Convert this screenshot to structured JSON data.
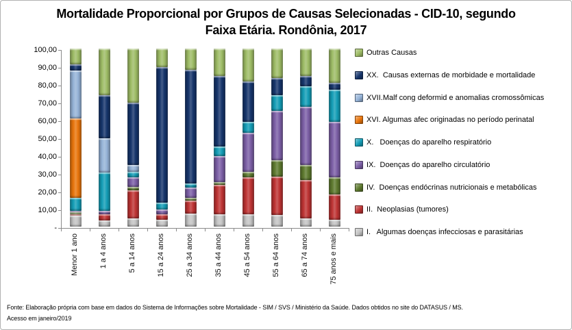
{
  "title": {
    "line1": "Mortalidade Proporcional por Grupos de Causas Selecionadas - CID-10, segundo",
    "line2": "Faixa Etária. Rondônia, 2017"
  },
  "footer": {
    "line1": "Fonte: Elaboração própria com base em dados do  Sistema de Informações sobre Mortalidade - SIM / SVS / Ministério da Saúde. Dados obtidos no site do DATASUS / MS.",
    "line2": "Acesso em janeiro/2019"
  },
  "chart_data": {
    "type": "bar",
    "stacked": true,
    "values_unit": "percent",
    "ylim": [
      0,
      100
    ],
    "grid": false,
    "legend_position": "right",
    "y_tick_labels": [
      "100,00",
      "90,00",
      "80,00",
      "70,00",
      "60,00",
      "50,00",
      "40,00",
      "30,00",
      "20,00",
      "10,00",
      "-"
    ],
    "categories": [
      "Menor 1 ano",
      "1 a 4 anos",
      "5 a 14 anos",
      "15 a 24 anos",
      "25 a 34 anos",
      "35 a 44 anos",
      "45 a 54 anos",
      "55 a 64 anos",
      "65 a 74 anos",
      "75 anos e mais"
    ],
    "series": [
      {
        "key": "i-infecciosas",
        "legend_label": "I.   Algumas doenças infecciosas e parasitárias",
        "color": "#C4C4C4",
        "values": [
          6.0,
          3.5,
          4.5,
          3.8,
          7.3,
          6.8,
          7.1,
          6.5,
          4.5,
          4.0
        ]
      },
      {
        "key": "ii-neoplasias",
        "legend_label": "II.  Neoplasias (tumores)",
        "color": "#BE3434",
        "values": [
          0.8,
          3.5,
          16.0,
          3.0,
          7.5,
          16.7,
          20.5,
          21.5,
          21.8,
          14.0
        ]
      },
      {
        "key": "iv-endocrinas",
        "legend_label": "IV.  Doenças endócrinas nutricionais e metabólicas",
        "color": "#5E7A2F",
        "values": [
          1.2,
          0,
          2.0,
          0,
          1.2,
          1.7,
          3.2,
          9.3,
          8.3,
          9.6
        ]
      },
      {
        "key": "ix-circulatorio",
        "legend_label": "IX.  Doenças do aparelho circulatório",
        "color": "#7C5FA6",
        "values": [
          1.0,
          2.0,
          5.1,
          2.8,
          5.8,
          14.6,
          21.8,
          27.6,
          32.7,
          31.4
        ]
      },
      {
        "key": "x-respiratorio",
        "legend_label": "X.   Doenças do aparelho respiratório",
        "color": "#149DB6",
        "values": [
          7.0,
          21.5,
          3.2,
          3.9,
          2.6,
          5.1,
          6.4,
          9.0,
          11.6,
          17.9
        ]
      },
      {
        "key": "xvi-perinatal",
        "legend_label": "XVI. Algumas afec originadas no período perinatal",
        "color": "#E8750C",
        "values": [
          44.7,
          0,
          0,
          0,
          0,
          0,
          0,
          0,
          0,
          0
        ]
      },
      {
        "key": "xvii-malformacoes",
        "legend_label": "XVII.Malf cong deformid e anomalias cromossômicas",
        "color": "#95B3D7",
        "values": [
          27.1,
          19.0,
          3.8,
          0,
          0,
          0,
          0,
          0,
          0,
          0
        ]
      },
      {
        "key": "xx-causas-externas",
        "legend_label": "XX.  Causas externas de morbidade e mortalidade",
        "color": "#16356B",
        "values": [
          3.2,
          24.5,
          35.0,
          76.3,
          63.7,
          39.7,
          22.7,
          9.6,
          5.7,
          3.9
        ]
      },
      {
        "key": "outras-causas",
        "legend_label": "Outras Causas",
        "color": "#9EBC66",
        "values": [
          9.0,
          26.0,
          30.4,
          10.2,
          11.9,
          15.4,
          18.3,
          16.5,
          15.4,
          19.2
        ]
      }
    ]
  }
}
